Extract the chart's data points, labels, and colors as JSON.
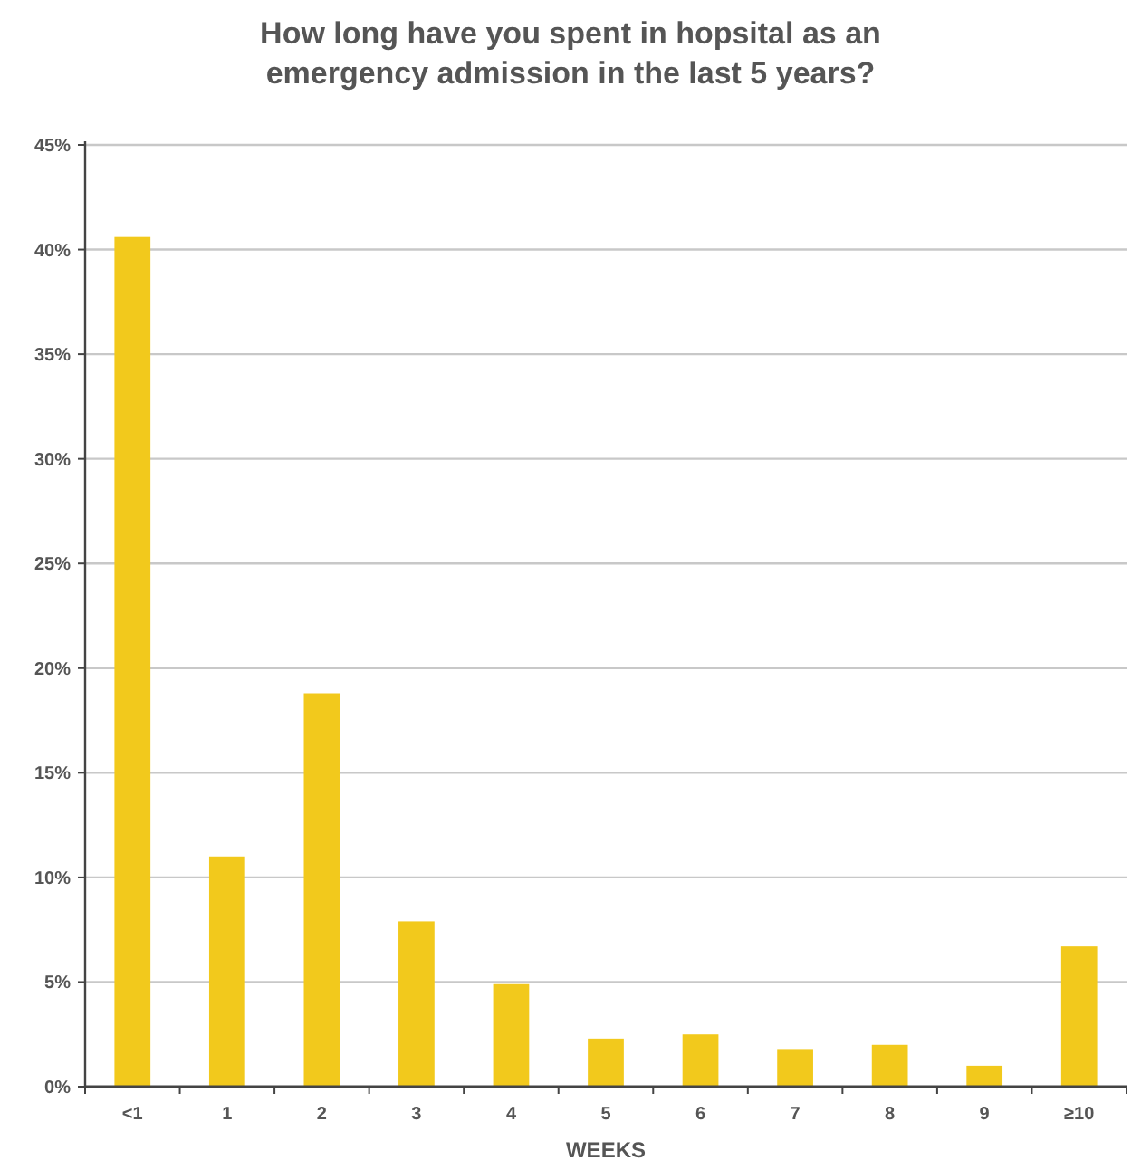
{
  "chart_data": {
    "type": "bar",
    "title": "How long have you spent in hopsital as an emergency admission in the last 5 years?",
    "xlabel": "WEEKS",
    "categories": [
      "<1",
      "1",
      "2",
      "3",
      "4",
      "5",
      "6",
      "7",
      "8",
      "9",
      "≥10"
    ],
    "values": [
      40.6,
      11.0,
      18.8,
      7.9,
      4.9,
      2.3,
      2.5,
      1.8,
      2.0,
      1.0,
      6.7
    ],
    "color": "#f2c91c",
    "ylim": [
      0,
      45
    ],
    "yticks": [
      {
        "value": 0,
        "label": "0%"
      },
      {
        "value": 5,
        "label": "5%"
      },
      {
        "value": 10,
        "label": "10%"
      },
      {
        "value": 15,
        "label": "15%"
      },
      {
        "value": 20,
        "label": "20%"
      },
      {
        "value": 25,
        "label": "25%"
      },
      {
        "value": 30,
        "label": "30%"
      },
      {
        "value": 35,
        "label": "35%"
      },
      {
        "value": 40,
        "label": "40%"
      },
      {
        "value": 45,
        "label": "45%"
      }
    ],
    "grid": "y"
  }
}
